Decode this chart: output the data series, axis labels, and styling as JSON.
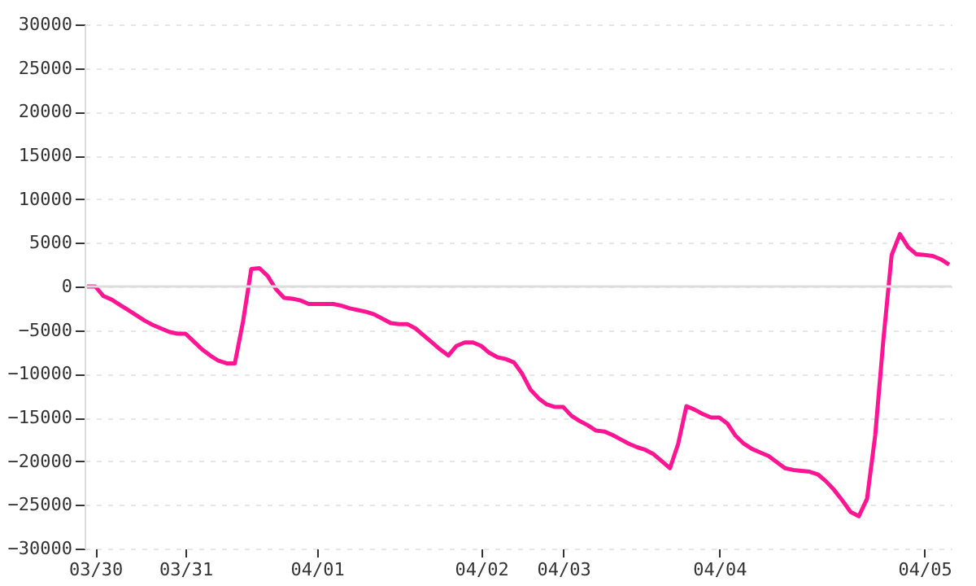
{
  "chart_data": {
    "type": "line",
    "categories": [
      null,
      "03/30",
      null,
      null,
      null,
      null,
      null,
      null,
      null,
      null,
      null,
      null,
      "03/31",
      null,
      null,
      null,
      null,
      null,
      null,
      null,
      null,
      null,
      null,
      null,
      null,
      null,
      null,
      null,
      "04/01",
      null,
      null,
      null,
      null,
      null,
      null,
      null,
      null,
      null,
      null,
      null,
      null,
      null,
      null,
      null,
      null,
      null,
      null,
      null,
      "04/02",
      null,
      null,
      null,
      null,
      null,
      null,
      null,
      null,
      null,
      "04/03",
      null,
      null,
      null,
      null,
      null,
      null,
      null,
      null,
      null,
      null,
      null,
      null,
      null,
      null,
      null,
      null,
      null,
      null,
      "04/04",
      null,
      null,
      null,
      null,
      null,
      null,
      null,
      null,
      null,
      null,
      null,
      null,
      null,
      null,
      null,
      null,
      null,
      null,
      null,
      null,
      null,
      null,
      null,
      null,
      "04/05",
      null,
      null,
      null
    ],
    "series": [
      {
        "color": "#ff1493",
        "values": [
          0,
          0,
          -1100,
          -1500,
          -2100,
          -2700,
          -3300,
          -3900,
          -4400,
          -4800,
          -5200,
          -5400,
          -5400,
          -6300,
          -7200,
          -7900,
          -8500,
          -8800,
          -8800,
          -4000,
          2000,
          2100,
          1200,
          -300,
          -1300,
          -1400,
          -1600,
          -2000,
          -2000,
          -2000,
          -2000,
          -2200,
          -2500,
          -2700,
          -2900,
          -3200,
          -3700,
          -4200,
          -4300,
          -4300,
          -4800,
          -5600,
          -6400,
          -7200,
          -7900,
          -6800,
          -6400,
          -6400,
          -6800,
          -7600,
          -8100,
          -8300,
          -8700,
          -10000,
          -11800,
          -12800,
          -13500,
          -13800,
          -13800,
          -14800,
          -15400,
          -15900,
          -16500,
          -16600,
          -17000,
          -17500,
          -18000,
          -18400,
          -18700,
          -19200,
          -20000,
          -20800,
          -18000,
          -13700,
          -14100,
          -14600,
          -15000,
          -15000,
          -15700,
          -17100,
          -18000,
          -18600,
          -19000,
          -19400,
          -20100,
          -20800,
          -21000,
          -21100,
          -21200,
          -21500,
          -22300,
          -23300,
          -24500,
          -25800,
          -26300,
          -24300,
          -17000,
          -6000,
          3600,
          6000,
          4500,
          3700,
          3600,
          3500,
          3100,
          2500
        ]
      }
    ],
    "ylim": [
      -30000,
      30000
    ],
    "yticks": [
      -30000,
      -25000,
      -20000,
      -15000,
      -10000,
      -5000,
      0,
      5000,
      10000,
      15000,
      20000,
      25000,
      30000
    ],
    "grid": "y",
    "ref_lines": [
      {
        "axis": "y",
        "value": 0,
        "color": "#dddddd"
      }
    ]
  }
}
